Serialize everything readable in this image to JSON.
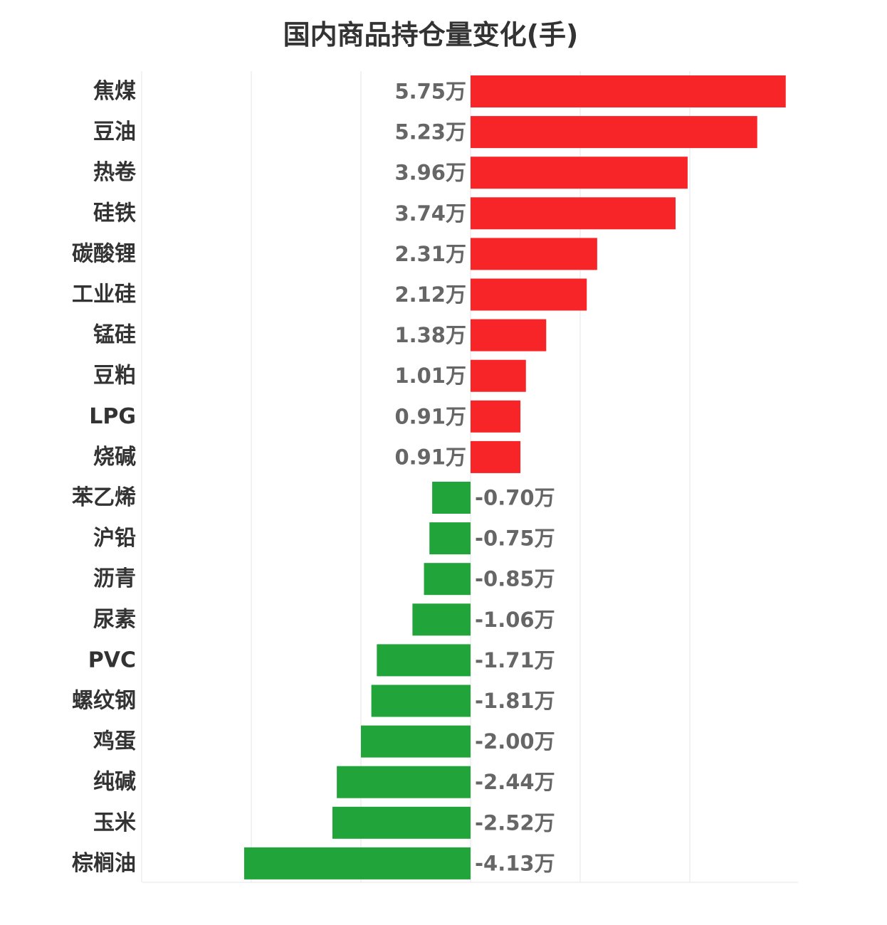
{
  "chart_data": {
    "type": "bar",
    "orientation": "horizontal",
    "title": "国内商品持仓量变化(手)",
    "xlabel": "",
    "ylabel": "",
    "unit_suffix": "万",
    "xlim": [
      -1.5,
      1.5
    ],
    "grid": true,
    "categories": [
      "焦煤",
      "豆油",
      "热卷",
      "硅铁",
      "碳酸锂",
      "工业硅",
      "锰硅",
      "豆粕",
      "LPG",
      "烧碱",
      "苯乙烯",
      "沪铅",
      "沥青",
      "尿素",
      "PVC",
      "螺纹钢",
      "鸡蛋",
      "纯碱",
      "玉米",
      "棕榈油"
    ],
    "values": [
      5.75,
      5.23,
      3.96,
      3.74,
      2.31,
      2.12,
      1.38,
      1.01,
      0.91,
      0.91,
      -0.7,
      -0.75,
      -0.85,
      -1.06,
      -1.71,
      -1.81,
      -2.0,
      -2.44,
      -2.52,
      -4.13
    ],
    "value_labels": [
      "5.75万",
      "5.23万",
      "3.96万",
      "3.74万",
      "2.31万",
      "2.12万",
      "1.38万",
      "1.01万",
      "0.91万",
      "0.91万",
      "-0.70万",
      "-0.75万",
      "-0.85万",
      "-1.06万",
      "-1.71万",
      "-1.81万",
      "-2.00万",
      "-2.44万",
      "-2.52万",
      "-4.13万"
    ],
    "colors": {
      "positive": "#f72527",
      "negative": "#21a43a",
      "grid": "#e6e6e6"
    }
  }
}
